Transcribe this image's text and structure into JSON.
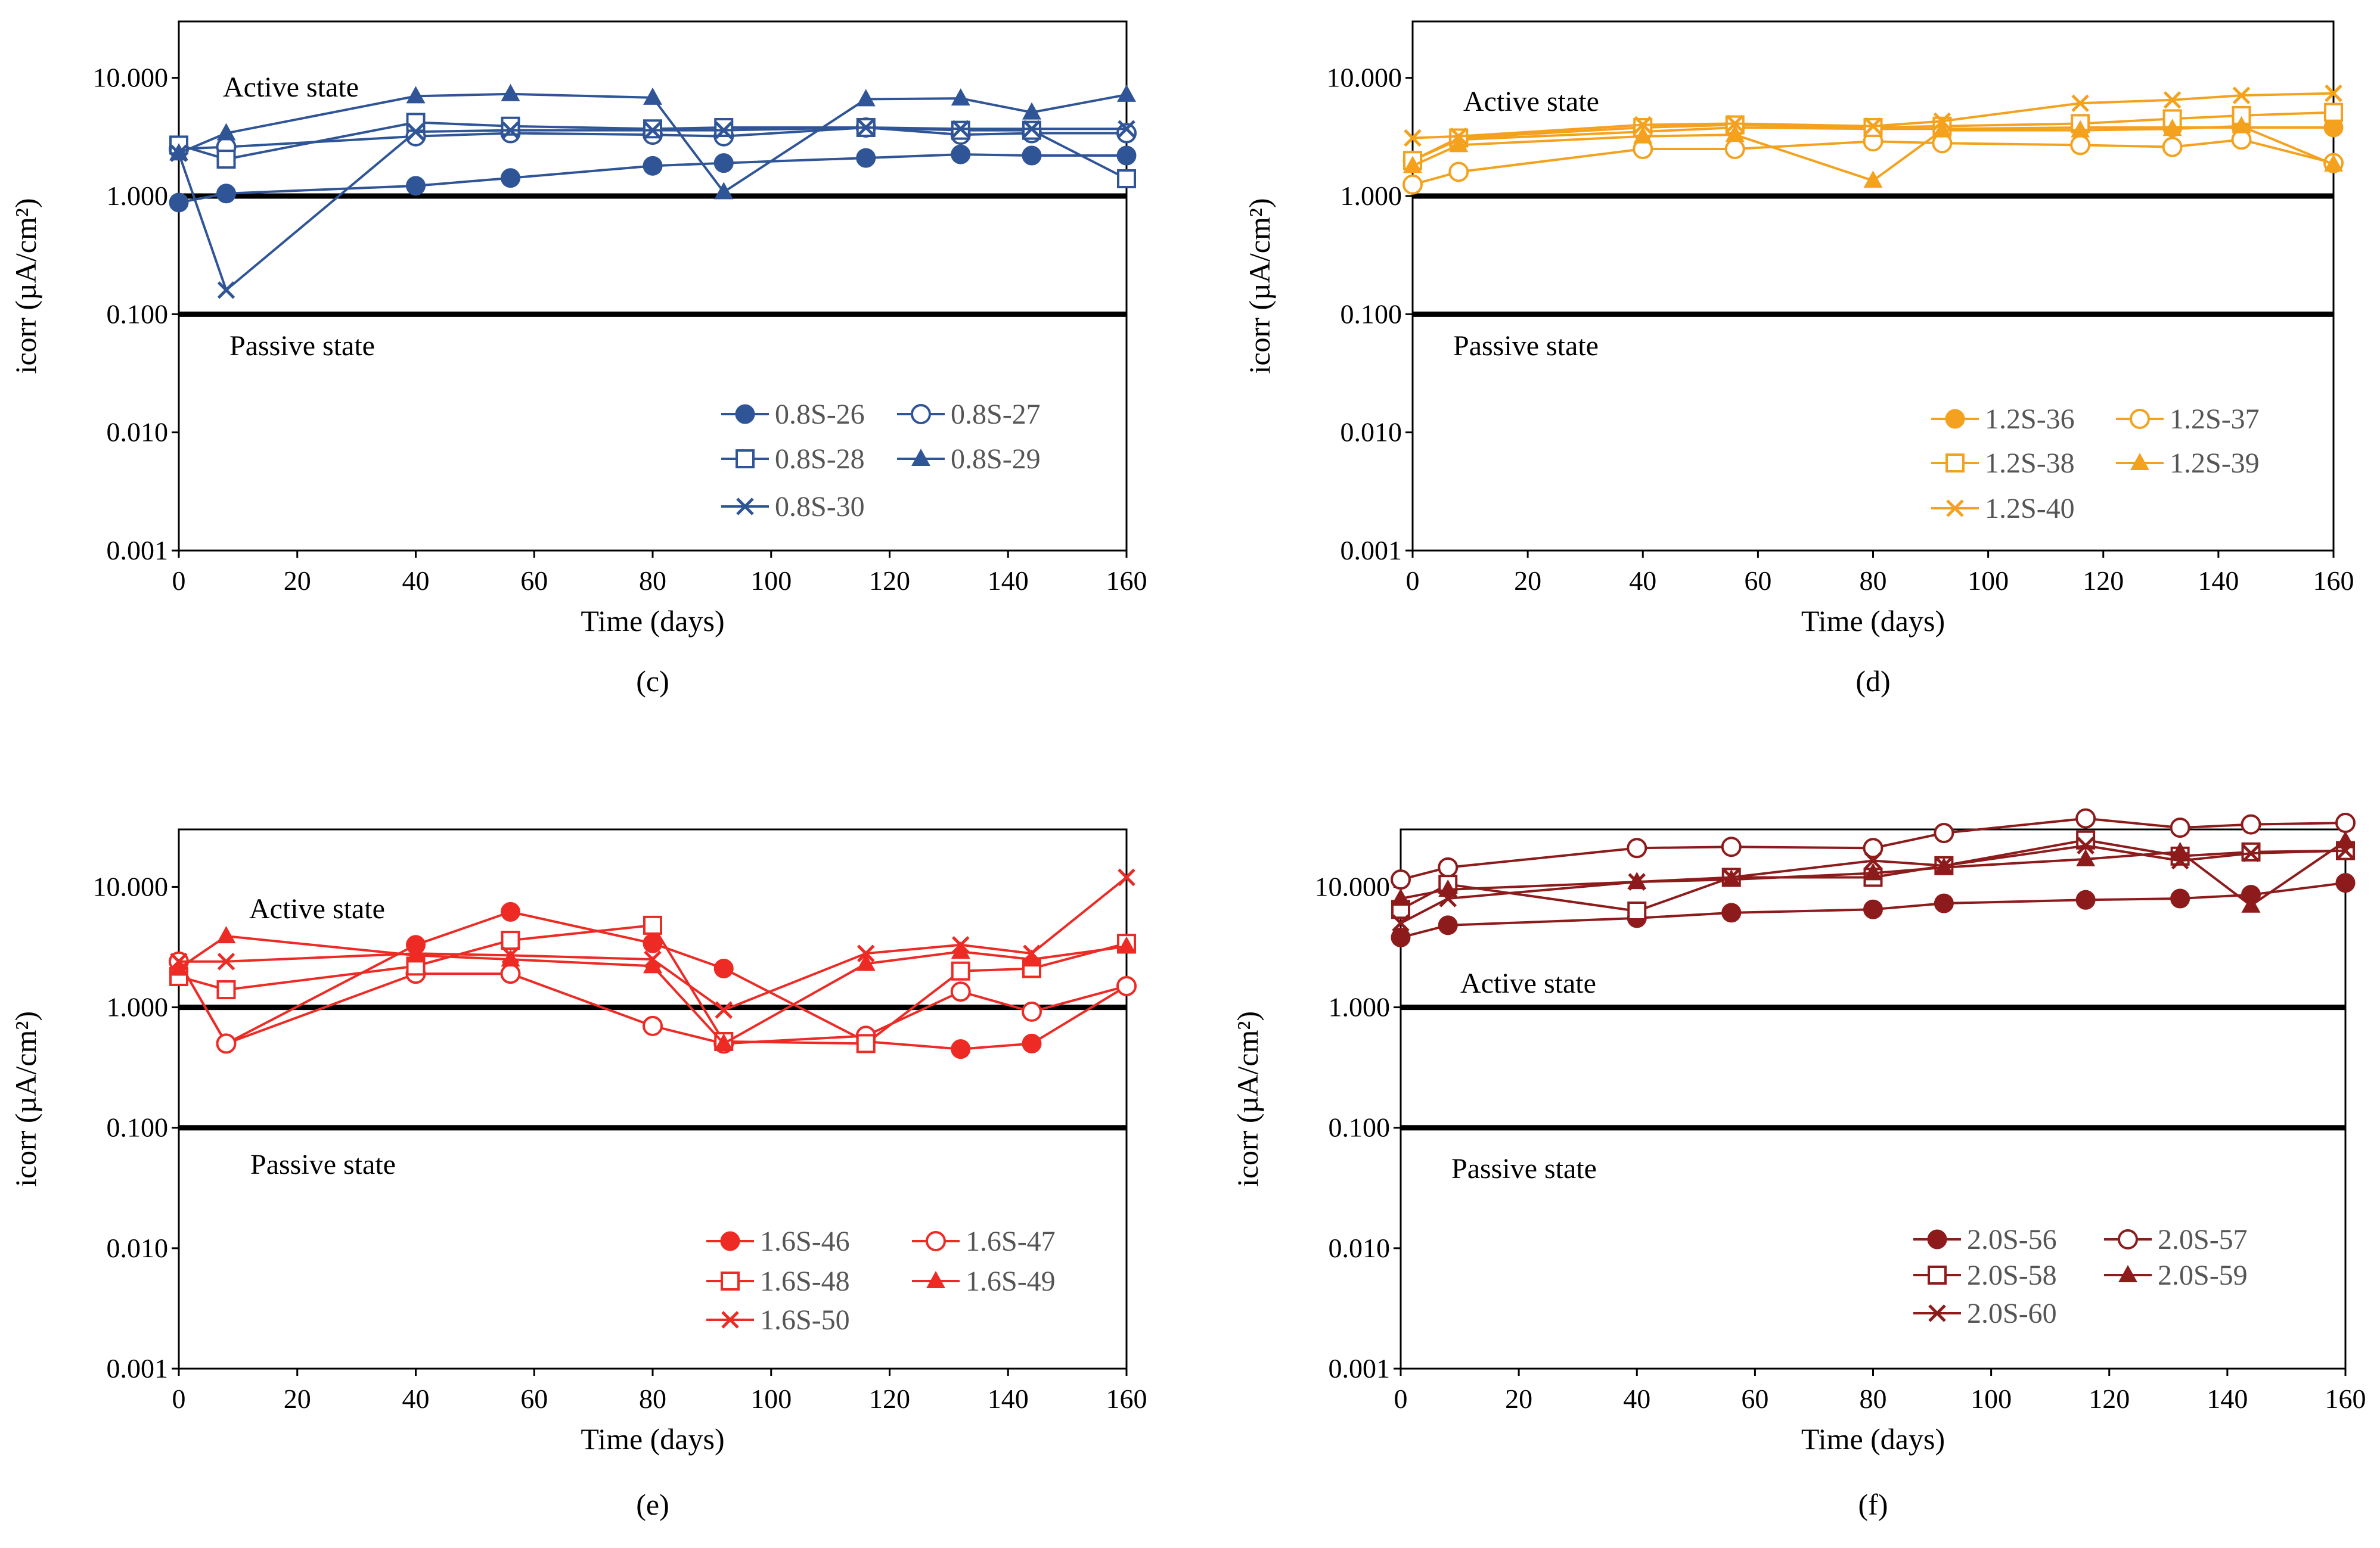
{
  "chart_data": [
    {
      "type": "line",
      "panel_label": "(c)",
      "xlabel": "Time (days)",
      "ylabel": "icorr (µA/cm²)",
      "yscale": "log",
      "xlim": [
        0,
        160
      ],
      "ylim": [
        0.001,
        30
      ],
      "xticks": [
        0,
        20,
        40,
        60,
        80,
        100,
        120,
        140,
        160
      ],
      "yticks": [
        {
          "v": 0.001,
          "label": "0.001"
        },
        {
          "v": 0.01,
          "label": "0.010"
        },
        {
          "v": 0.1,
          "label": "0.100"
        },
        {
          "v": 1,
          "label": "1.000"
        },
        {
          "v": 10,
          "label": "10.000"
        }
      ],
      "active_label": "Active state",
      "passive_label": "Passive state",
      "thresholds": [
        1,
        0.1
      ],
      "color": "#2f5597",
      "series": [
        {
          "name": "0.8S-26",
          "marker": "circle-filled",
          "x": [
            0,
            8,
            40,
            56,
            80,
            92,
            116,
            132,
            144,
            160
          ],
          "y": [
            0.88,
            1.05,
            1.22,
            1.42,
            1.8,
            1.9,
            2.1,
            2.25,
            2.2,
            2.2
          ]
        },
        {
          "name": "0.8S-27",
          "marker": "circle-open",
          "x": [
            0,
            8,
            40,
            56,
            80,
            92,
            116,
            132,
            144,
            160
          ],
          "y": [
            2.5,
            2.6,
            3.2,
            3.4,
            3.3,
            3.2,
            3.8,
            3.3,
            3.4,
            3.4
          ]
        },
        {
          "name": "0.8S-28",
          "marker": "square-open",
          "x": [
            0,
            8,
            40,
            56,
            80,
            92,
            116,
            132,
            144,
            160
          ],
          "y": [
            2.7,
            2.05,
            4.2,
            3.9,
            3.7,
            3.8,
            3.8,
            3.6,
            3.6,
            1.4
          ]
        },
        {
          "name": "0.8S-29",
          "marker": "triangle-filled",
          "x": [
            0,
            8,
            40,
            56,
            80,
            92,
            116,
            132,
            144,
            160
          ],
          "y": [
            2.3,
            3.4,
            7.0,
            7.3,
            6.8,
            1.08,
            6.6,
            6.7,
            5.1,
            7.2
          ]
        },
        {
          "name": "0.8S-30",
          "marker": "x",
          "x": [
            0,
            8,
            40,
            56,
            80,
            92,
            116,
            132,
            144,
            160
          ],
          "y": [
            2.3,
            0.16,
            3.5,
            3.6,
            3.6,
            3.6,
            3.8,
            3.7,
            3.7,
            3.7
          ]
        }
      ]
    },
    {
      "type": "line",
      "panel_label": "(d)",
      "xlabel": "Time (days)",
      "ylabel": "icorr (µA/cm²)",
      "yscale": "log",
      "xlim": [
        0,
        160
      ],
      "ylim": [
        0.001,
        30
      ],
      "xticks": [
        0,
        20,
        40,
        60,
        80,
        100,
        120,
        140,
        160
      ],
      "yticks": [
        {
          "v": 0.001,
          "label": "0.001"
        },
        {
          "v": 0.01,
          "label": "0.010"
        },
        {
          "v": 0.1,
          "label": "0.100"
        },
        {
          "v": 1,
          "label": "1.000"
        },
        {
          "v": 10,
          "label": "10.000"
        }
      ],
      "active_label": "Active state",
      "passive_label": "Passive state",
      "thresholds": [
        1,
        0.1
      ],
      "color": "#f4a21e",
      "series": [
        {
          "name": "1.2S-36",
          "marker": "circle-filled",
          "x": [
            0,
            8,
            40,
            56,
            80,
            92,
            116,
            132,
            144,
            160
          ],
          "y": [
            2.0,
            3.0,
            3.5,
            3.8,
            3.7,
            3.7,
            3.8,
            3.8,
            3.8,
            3.8
          ]
        },
        {
          "name": "1.2S-37",
          "marker": "circle-open",
          "x": [
            0,
            8,
            40,
            56,
            80,
            92,
            116,
            132,
            144,
            160
          ],
          "y": [
            1.25,
            1.6,
            2.5,
            2.5,
            2.9,
            2.8,
            2.7,
            2.6,
            3.0,
            1.9
          ]
        },
        {
          "name": "1.2S-38",
          "marker": "square-open",
          "x": [
            0,
            8,
            40,
            56,
            80,
            92,
            116,
            132,
            144,
            160
          ],
          "y": [
            2.0,
            3.1,
            3.8,
            4.0,
            3.8,
            3.9,
            4.1,
            4.5,
            4.8,
            5.1
          ]
        },
        {
          "name": "1.2S-39",
          "marker": "triangle-filled",
          "x": [
            0,
            8,
            40,
            56,
            80,
            92,
            116,
            132,
            144,
            160
          ],
          "y": [
            1.8,
            2.7,
            3.2,
            3.3,
            1.35,
            3.6,
            3.6,
            3.7,
            3.9,
            1.85
          ]
        },
        {
          "name": "1.2S-40",
          "marker": "x",
          "x": [
            0,
            8,
            40,
            56,
            80,
            92,
            116,
            132,
            144,
            160
          ],
          "y": [
            3.1,
            3.2,
            4.0,
            4.1,
            3.9,
            4.3,
            6.1,
            6.5,
            7.1,
            7.4
          ]
        }
      ]
    },
    {
      "type": "line",
      "panel_label": "(e)",
      "xlabel": "Time (days)",
      "ylabel": "icorr (µA/cm²)",
      "yscale": "log",
      "xlim": [
        0,
        160
      ],
      "ylim": [
        0.001,
        30
      ],
      "xticks": [
        0,
        20,
        40,
        60,
        80,
        100,
        120,
        140,
        160
      ],
      "yticks": [
        {
          "v": 0.001,
          "label": "0.001"
        },
        {
          "v": 0.01,
          "label": "0.010"
        },
        {
          "v": 0.1,
          "label": "0.100"
        },
        {
          "v": 1,
          "label": "1.000"
        },
        {
          "v": 10,
          "label": "10.000"
        }
      ],
      "active_label": "Active state",
      "passive_label": "Passive state",
      "thresholds": [
        1,
        0.1
      ],
      "color": "#ee2a24",
      "series": [
        {
          "name": "1.6S-46",
          "marker": "circle-filled",
          "x": [
            0,
            8,
            40,
            56,
            80,
            92,
            116,
            132,
            144,
            160
          ],
          "y": [
            2.4,
            0.5,
            3.3,
            6.2,
            3.4,
            2.1,
            0.52,
            0.45,
            0.5,
            1.5
          ]
        },
        {
          "name": "1.6S-47",
          "marker": "circle-open",
          "x": [
            0,
            8,
            40,
            56,
            80,
            92,
            116,
            132,
            144,
            160
          ],
          "y": [
            2.4,
            0.5,
            1.9,
            1.9,
            0.7,
            0.5,
            0.58,
            1.35,
            0.92,
            1.5
          ]
        },
        {
          "name": "1.6S-48",
          "marker": "square-open",
          "x": [
            0,
            8,
            40,
            56,
            80,
            92,
            116,
            132,
            144,
            160
          ],
          "y": [
            1.8,
            1.4,
            2.2,
            3.6,
            4.8,
            0.52,
            0.5,
            2.0,
            2.1,
            3.4
          ]
        },
        {
          "name": "1.6S-49",
          "marker": "triangle-filled",
          "x": [
            0,
            8,
            40,
            56,
            80,
            92,
            116,
            132,
            144,
            160
          ],
          "y": [
            2.1,
            3.9,
            2.7,
            2.5,
            2.2,
            0.5,
            2.3,
            2.9,
            2.5,
            3.2
          ]
        },
        {
          "name": "1.6S-50",
          "marker": "x",
          "x": [
            0,
            8,
            40,
            56,
            80,
            92,
            116,
            132,
            144,
            160
          ],
          "y": [
            2.4,
            2.4,
            2.8,
            2.7,
            2.5,
            0.95,
            2.8,
            3.3,
            2.8,
            12.0
          ]
        }
      ]
    },
    {
      "type": "line",
      "panel_label": "(f)",
      "xlabel": "Time (days)",
      "ylabel": "icorr (µA/cm²)",
      "yscale": "log",
      "xlim": [
        0,
        160
      ],
      "ylim": [
        0.001,
        30
      ],
      "xticks": [
        0,
        20,
        40,
        60,
        80,
        100,
        120,
        140,
        160
      ],
      "yticks": [
        {
          "v": 0.001,
          "label": "0.001"
        },
        {
          "v": 0.01,
          "label": "0.010"
        },
        {
          "v": 0.1,
          "label": "0.100"
        },
        {
          "v": 1,
          "label": "1.000"
        },
        {
          "v": 10,
          "label": "10.000"
        }
      ],
      "active_label": "Active state",
      "passive_label": "Passive state",
      "thresholds": [
        1,
        0.1
      ],
      "color": "#8e1b1b",
      "series": [
        {
          "name": "2.0S-56",
          "marker": "circle-filled",
          "x": [
            0,
            8,
            40,
            56,
            80,
            92,
            116,
            132,
            144,
            160
          ],
          "y": [
            3.8,
            4.8,
            5.5,
            6.1,
            6.5,
            7.3,
            7.8,
            8.0,
            8.6,
            10.8
          ]
        },
        {
          "name": "2.0S-57",
          "marker": "circle-open",
          "x": [
            0,
            8,
            40,
            56,
            80,
            92,
            116,
            132,
            144,
            160
          ],
          "y": [
            11.5,
            14.5,
            21.0,
            21.5,
            21.0,
            28.0,
            37.0,
            31.0,
            33.0,
            34.0
          ]
        },
        {
          "name": "2.0S-58",
          "marker": "square-open",
          "x": [
            0,
            8,
            40,
            56,
            80,
            92,
            116,
            132,
            144,
            160
          ],
          "y": [
            6.5,
            10.5,
            6.3,
            12.0,
            12.0,
            15.0,
            24.5,
            18.0,
            19.5,
            20.0
          ]
        },
        {
          "name": "2.0S-59",
          "marker": "triangle-filled",
          "x": [
            0,
            8,
            40,
            56,
            80,
            92,
            116,
            132,
            144,
            160
          ],
          "y": [
            8.0,
            9.5,
            11.0,
            11.5,
            13.0,
            14.5,
            17.0,
            19.5,
            7.0,
            24.0
          ]
        },
        {
          "name": "2.0S-60",
          "marker": "x",
          "x": [
            0,
            8,
            40,
            56,
            80,
            92,
            116,
            132,
            144,
            160
          ],
          "y": [
            5.0,
            8.0,
            11.0,
            12.0,
            16.5,
            15.0,
            22.0,
            16.5,
            19.0,
            20.0
          ]
        }
      ]
    }
  ]
}
